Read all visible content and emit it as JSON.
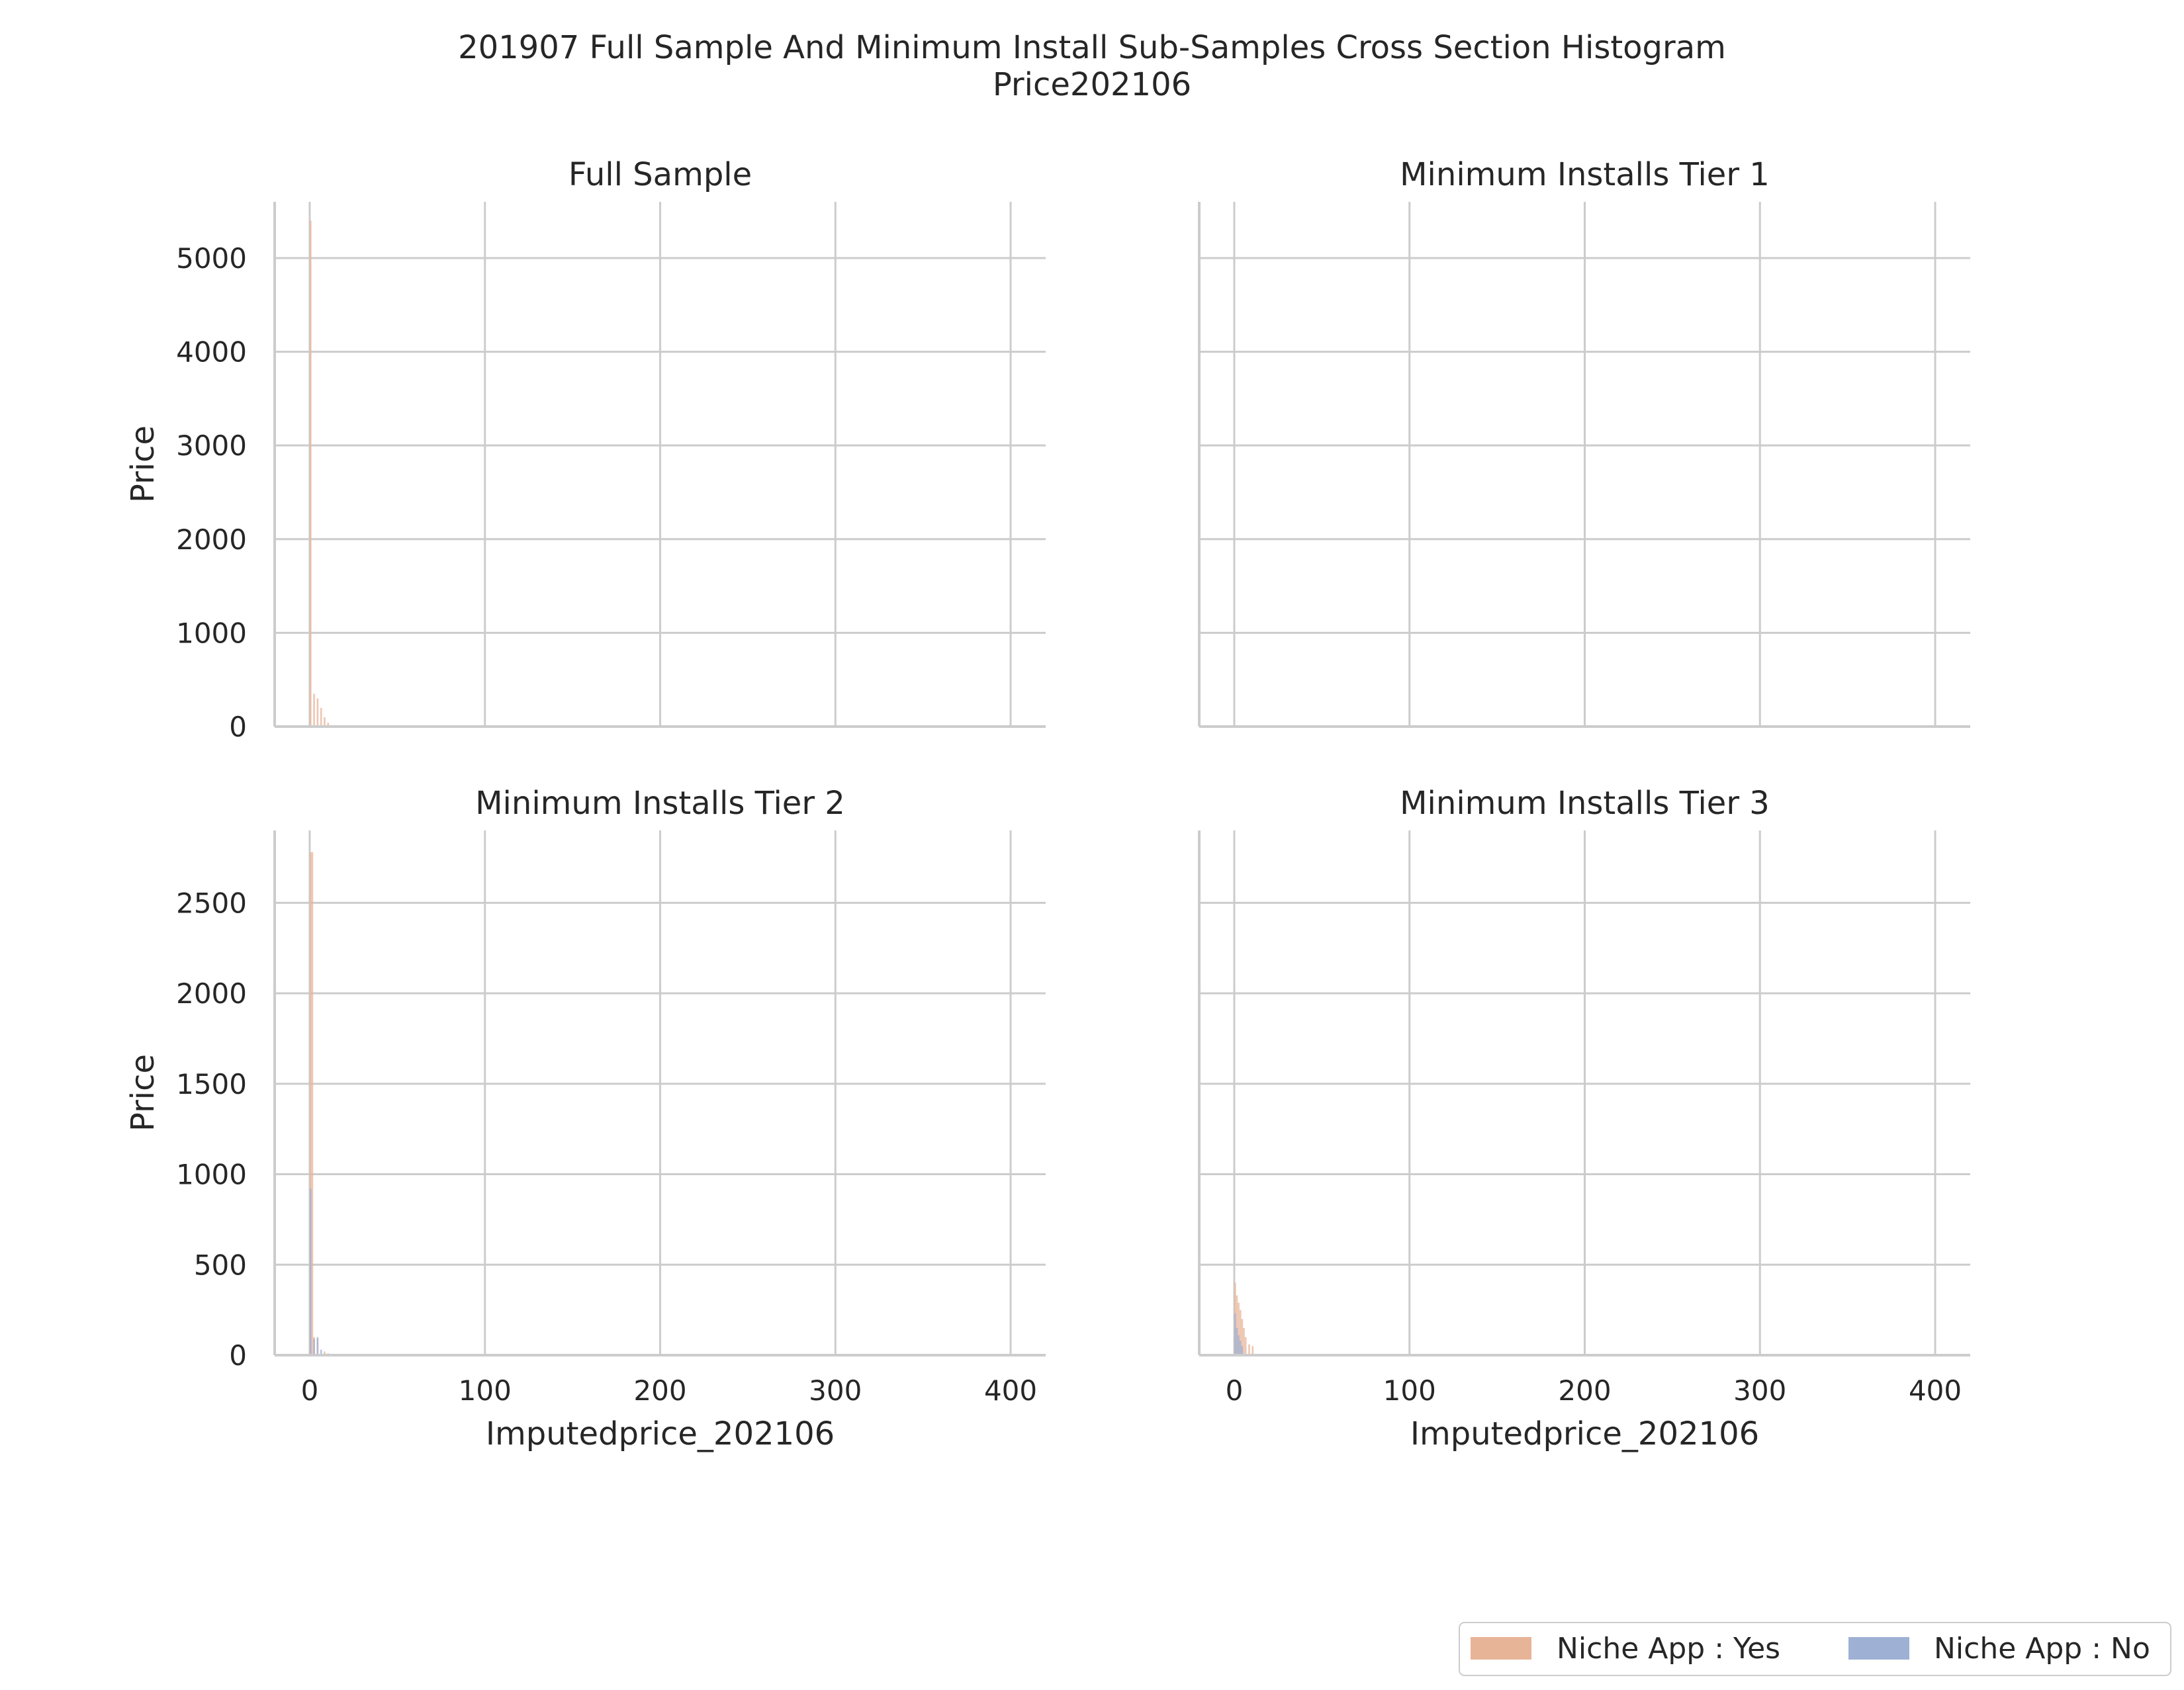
{
  "figure": {
    "title_line1": "201907 Full Sample And Minimum Install Sub-Samples Cross Section Histogram",
    "title_line2": "Price202106"
  },
  "legend": {
    "items": [
      {
        "label": "Niche App : Yes",
        "color": "#e8b498"
      },
      {
        "label": "Niche App : No",
        "color": "#9eb1d4"
      }
    ],
    "placement": "lower-right"
  },
  "colors": {
    "grid": "#cccccc",
    "axis": "#cccccc",
    "niche_yes": "#e8b498",
    "niche_no": "#9eb1d4"
  },
  "chart_data": [
    {
      "type": "histogram",
      "title": "Full Sample",
      "xlabel": "",
      "ylabel": "Price",
      "xlim": [
        -20,
        420
      ],
      "ylim": [
        0,
        5600
      ],
      "x_ticks": [
        0,
        100,
        200,
        300,
        400
      ],
      "y_ticks": [
        0,
        1000,
        2000,
        3000,
        4000,
        5000
      ],
      "show_x_tick_labels": false,
      "show_y_tick_labels": true,
      "grid": true,
      "bars": [
        {
          "series": "Niche App : Yes",
          "x": 0,
          "width": 1,
          "value": 5400
        },
        {
          "series": "Niche App : Yes",
          "x": 2,
          "width": 1,
          "value": 350
        },
        {
          "series": "Niche App : Yes",
          "x": 4,
          "width": 1,
          "value": 300
        },
        {
          "series": "Niche App : Yes",
          "x": 6,
          "width": 1,
          "value": 200
        },
        {
          "series": "Niche App : Yes",
          "x": 8,
          "width": 1,
          "value": 100
        },
        {
          "series": "Niche App : Yes",
          "x": 10,
          "width": 1,
          "value": 40
        }
      ]
    },
    {
      "type": "histogram",
      "title": "Minimum Installs Tier 1",
      "xlabel": "",
      "ylabel": "",
      "xlim": [
        -20,
        420
      ],
      "ylim": [
        0,
        5600
      ],
      "x_ticks": [
        0,
        100,
        200,
        300,
        400
      ],
      "y_ticks": [
        0,
        1000,
        2000,
        3000,
        4000,
        5000
      ],
      "show_x_tick_labels": false,
      "show_y_tick_labels": false,
      "grid": true,
      "bars": []
    },
    {
      "type": "histogram",
      "title": "Minimum Installs Tier 2",
      "xlabel": "Imputedprice_202106",
      "ylabel": "Price",
      "xlim": [
        -20,
        420
      ],
      "ylim": [
        0,
        2900
      ],
      "x_ticks": [
        0,
        100,
        200,
        300,
        400
      ],
      "y_ticks": [
        0,
        500,
        1000,
        1500,
        2000,
        2500
      ],
      "show_x_tick_labels": true,
      "show_y_tick_labels": true,
      "grid": true,
      "bars": [
        {
          "series": "Niche App : Yes",
          "x": 0,
          "width": 2,
          "value": 2780
        },
        {
          "series": "Niche App : No",
          "x": 0,
          "width": 1,
          "value": 920
        },
        {
          "series": "Niche App : Yes",
          "x": 2,
          "width": 1,
          "value": 100
        },
        {
          "series": "Niche App : No",
          "x": 2,
          "width": 1,
          "value": 90
        },
        {
          "series": "Niche App : Yes",
          "x": 4,
          "width": 1,
          "value": 90
        },
        {
          "series": "Niche App : No",
          "x": 4,
          "width": 1,
          "value": 100
        },
        {
          "series": "Niche App : No",
          "x": 6,
          "width": 1,
          "value": 30
        },
        {
          "series": "Niche App : Yes",
          "x": 8,
          "width": 1,
          "value": 20
        },
        {
          "series": "Niche App : No",
          "x": 10,
          "width": 1,
          "value": 10
        }
      ]
    },
    {
      "type": "histogram",
      "title": "Minimum Installs Tier 3",
      "xlabel": "Imputedprice_202106",
      "ylabel": "",
      "xlim": [
        -20,
        420
      ],
      "ylim": [
        0,
        2900
      ],
      "x_ticks": [
        0,
        100,
        200,
        300,
        400
      ],
      "y_ticks": [
        0,
        500,
        1000,
        1500,
        2000,
        2500
      ],
      "show_x_tick_labels": true,
      "show_y_tick_labels": false,
      "grid": true,
      "bars": [
        {
          "series": "Niche App : Yes",
          "x": 0,
          "width": 1,
          "value": 400
        },
        {
          "series": "Niche App : No",
          "x": 0,
          "width": 1,
          "value": 230
        },
        {
          "series": "Niche App : Yes",
          "x": 1,
          "width": 1,
          "value": 330
        },
        {
          "series": "Niche App : No",
          "x": 1,
          "width": 1,
          "value": 150
        },
        {
          "series": "Niche App : Yes",
          "x": 2,
          "width": 1,
          "value": 290
        },
        {
          "series": "Niche App : No",
          "x": 2,
          "width": 1,
          "value": 110
        },
        {
          "series": "Niche App : Yes",
          "x": 3,
          "width": 1,
          "value": 250
        },
        {
          "series": "Niche App : No",
          "x": 3,
          "width": 1,
          "value": 80
        },
        {
          "series": "Niche App : Yes",
          "x": 4,
          "width": 1,
          "value": 200
        },
        {
          "series": "Niche App : No",
          "x": 4,
          "width": 1,
          "value": 50
        },
        {
          "series": "Niche App : Yes",
          "x": 5,
          "width": 1,
          "value": 150
        },
        {
          "series": "Niche App : Yes",
          "x": 6,
          "width": 1,
          "value": 100
        },
        {
          "series": "Niche App : Yes",
          "x": 8,
          "width": 1,
          "value": 60
        },
        {
          "series": "Niche App : Yes",
          "x": 10,
          "width": 1,
          "value": 50
        }
      ]
    }
  ]
}
